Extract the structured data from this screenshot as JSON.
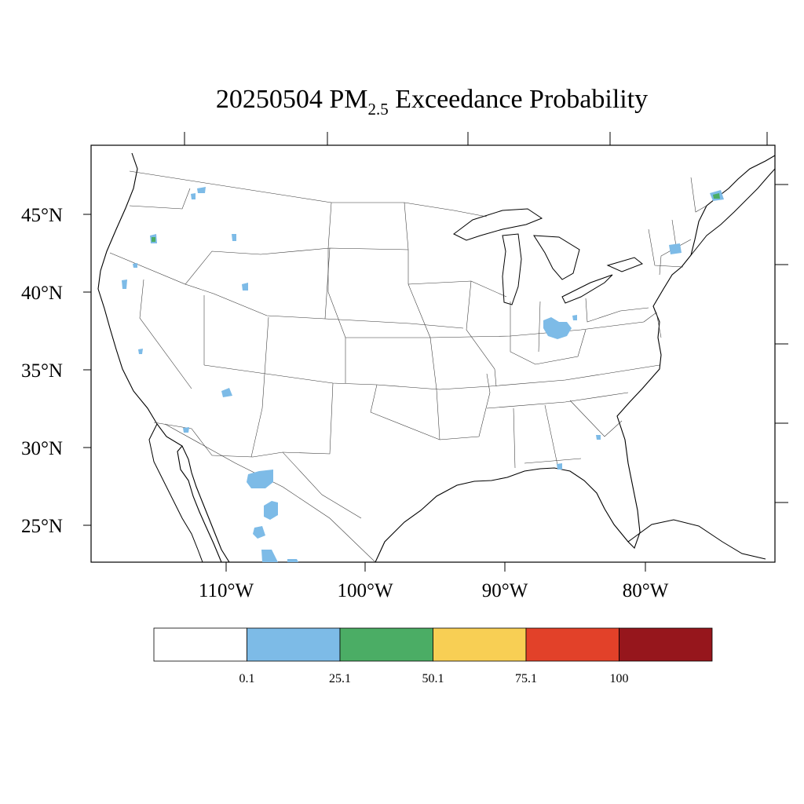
{
  "title": {
    "prefix": "20250504 PM",
    "subscript": "2.5",
    "suffix": " Exceedance Probability"
  },
  "lat_labels": [
    "45°N",
    "40°N",
    "35°N",
    "30°N",
    "25°N"
  ],
  "lon_labels": [
    "110°W",
    "100°W",
    "90°W",
    "80°W"
  ],
  "colorbar": {
    "boundary_labels": [
      "0.1",
      "25.1",
      "50.1",
      "75.1",
      "100"
    ],
    "bins": [
      {
        "range": "<0.1",
        "color": "#ffffff"
      },
      {
        "range": "0.1-25.1",
        "color": "#7dbbe7"
      },
      {
        "range": "25.1-50.1",
        "color": "#4bad65"
      },
      {
        "range": "50.1-75.1",
        "color": "#f8cf54"
      },
      {
        "range": "75.1-100",
        "color": "#e24129"
      },
      {
        "range": "100+",
        "color": "#96161c"
      }
    ]
  },
  "exceedance_areas": [
    {
      "region": "NE Washington",
      "lon": -117.2,
      "lat": 47.9,
      "category": "0.1-25.1"
    },
    {
      "region": "E Washington",
      "lon": -119.6,
      "lat": 46.8,
      "category": "0.1-25.1"
    },
    {
      "region": "Central Oregon",
      "lon": -119.9,
      "lat": 44.8,
      "category": "25.1-50.1"
    },
    {
      "region": "SW Oregon",
      "lon": -121.8,
      "lat": 42.6,
      "category": "0.1-25.1"
    },
    {
      "region": "N California",
      "lon": -123.0,
      "lat": 40.1,
      "category": "0.1-25.1"
    },
    {
      "region": "Central California",
      "lon": -121.3,
      "lat": 36.1,
      "category": "0.1-25.1"
    },
    {
      "region": "Montana",
      "lon": -115.3,
      "lat": 44.8,
      "category": "0.1-25.1"
    },
    {
      "region": "SE Idaho",
      "lon": -112.4,
      "lat": 41.0,
      "category": "0.1-25.1"
    },
    {
      "region": "Arizona",
      "lon": -112.2,
      "lat": 33.4,
      "category": "0.1-25.1"
    },
    {
      "region": "S Arizona",
      "lon": -112.0,
      "lat": 30.8,
      "category": "0.1-25.1"
    },
    {
      "region": "Chihuahua",
      "lon": -108.3,
      "lat": 28.2,
      "category": "0.1-25.1"
    },
    {
      "region": "Durango",
      "lon": -106.7,
      "lat": 25.9,
      "category": "0.1-25.1"
    },
    {
      "region": "Sinaloa",
      "lon": -106.4,
      "lat": 23.4,
      "category": "0.1-25.1"
    },
    {
      "region": "Indiana",
      "lon": -85.1,
      "lat": 38.6,
      "category": "0.1-25.1"
    },
    {
      "region": "Ohio",
      "lon": -82.8,
      "lat": 39.3,
      "category": "0.1-25.1"
    },
    {
      "region": "Georgia coast",
      "lon": -80.4,
      "lat": 31.4,
      "category": "0.1-25.1"
    },
    {
      "region": "N Florida",
      "lon": -82.6,
      "lat": 29.8,
      "category": "0.1-25.1"
    },
    {
      "region": "Vermont/NH",
      "lon": -71.9,
      "lat": 44.4,
      "category": "0.1-25.1"
    },
    {
      "region": "Quebec",
      "lon": -66.4,
      "lat": 48.2,
      "category": "25.1-50.1"
    }
  ]
}
